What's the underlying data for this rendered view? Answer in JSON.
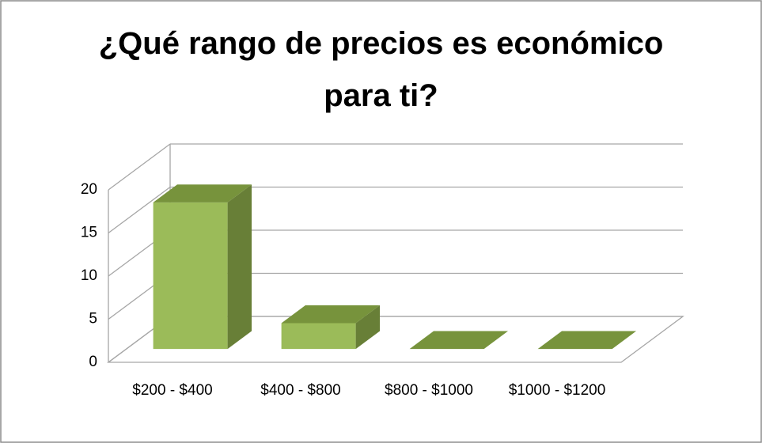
{
  "chart_data": {
    "type": "bar3d",
    "title": "¿Qué rango de precios es económico para ti?",
    "categories": [
      "$200 - $400",
      "$400 - $800",
      "$800 - $1000",
      "$1000 - $1200"
    ],
    "values": [
      17,
      3,
      0,
      0
    ],
    "color": "#9bbb59",
    "ylim": [
      0,
      20
    ],
    "yticks": [
      0,
      5,
      10,
      15,
      20
    ],
    "grid": true
  }
}
